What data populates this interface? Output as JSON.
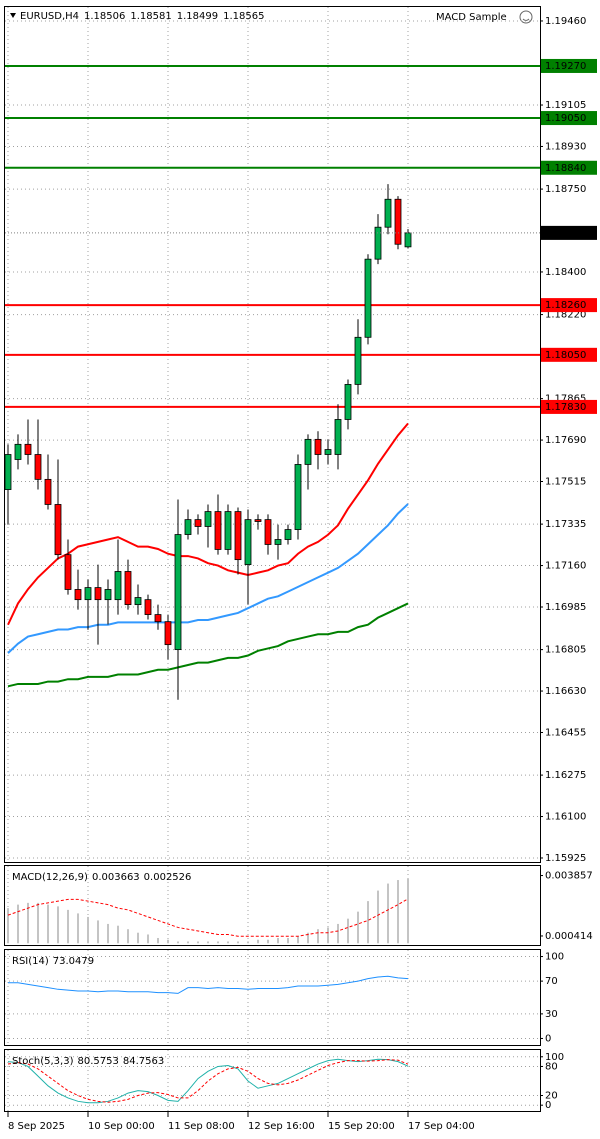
{
  "chart_data": [
    {
      "type": "candlestick",
      "title": "EURUSD,H4",
      "expert": "MACD Sample",
      "categories": [
        "8 Sep 2025",
        null,
        null,
        null,
        null,
        null,
        null,
        null,
        "10 Sep 00:00",
        null,
        null,
        null,
        null,
        null,
        null,
        null,
        "11 Sep 08:00",
        null,
        null,
        null,
        null,
        null,
        null,
        null,
        "12 Sep 16:00",
        null,
        null,
        null,
        null,
        null,
        null,
        null,
        "15 Sep 20:00",
        null,
        null,
        null,
        null,
        null,
        null,
        null,
        "17 Sep 04:00"
      ],
      "open": [
        1.17481,
        1.17608,
        1.17672,
        1.17629,
        1.17524,
        1.17418,
        1.17206,
        1.17059,
        1.17016,
        1.17067,
        1.17016,
        1.17016,
        1.17135,
        1.16995,
        1.17016,
        1.16953,
        1.16923,
        1.16805,
        1.17291,
        1.17354,
        1.17325,
        1.17388,
        1.17228,
        1.17388,
        1.17164,
        1.17354,
        1.17354,
        1.17249,
        1.1727,
        1.17312,
        1.17587,
        1.17693,
        1.17629,
        1.17629,
        1.17777,
        1.17925,
        1.18124,
        1.18454,
        1.18589,
        1.18707,
        1.18506
      ],
      "high": [
        1.17672,
        1.17714,
        1.17777,
        1.17777,
        1.17629,
        1.17608,
        1.1727,
        1.17143,
        1.17101,
        1.17164,
        1.17101,
        1.1727,
        1.17185,
        1.1708,
        1.17037,
        1.16995,
        1.16953,
        1.17439,
        1.17397,
        1.17376,
        1.17418,
        1.1746,
        1.17418,
        1.17405,
        1.17397,
        1.17376,
        1.17376,
        1.17333,
        1.17333,
        1.17629,
        1.17714,
        1.17727,
        1.17693,
        1.17841,
        1.17946,
        1.182,
        1.18475,
        1.18644,
        1.18771,
        1.1872,
        1.18581
      ],
      "low": [
        1.17333,
        1.17566,
        1.17587,
        1.17481,
        1.17397,
        1.17185,
        1.17037,
        1.16974,
        1.16889,
        1.16826,
        1.16911,
        1.16953,
        1.16974,
        1.16953,
        1.16932,
        1.16889,
        1.16763,
        1.16593,
        1.1727,
        1.17291,
        1.17236,
        1.17206,
        1.17206,
        1.17122,
        1.16995,
        1.17312,
        1.17206,
        1.17185,
        1.17249,
        1.1727,
        1.17481,
        1.17566,
        1.17587,
        1.17566,
        1.17735,
        1.17883,
        1.18094,
        1.18433,
        1.18559,
        1.18496,
        1.18499
      ],
      "close": [
        1.17629,
        1.17672,
        1.17629,
        1.17524,
        1.17418,
        1.17206,
        1.17059,
        1.17016,
        1.17067,
        1.17016,
        1.17059,
        1.17135,
        1.16995,
        1.17025,
        1.16953,
        1.16923,
        1.16826,
        1.17291,
        1.17354,
        1.17325,
        1.17388,
        1.17228,
        1.17388,
        1.17185,
        1.17354,
        1.17346,
        1.17249,
        1.1727,
        1.17312,
        1.17587,
        1.17693,
        1.17629,
        1.1765,
        1.17777,
        1.17925,
        1.18124,
        1.18454,
        1.18589,
        1.18707,
        1.18517,
        1.18565
      ],
      "bull_color": "#00b050",
      "bear_color": "#ff0000",
      "moving_averages": [
        {
          "color": "#ff0000",
          "values": [
            1.1691,
            1.17,
            1.1706,
            1.1711,
            1.1715,
            1.1719,
            1.1721,
            1.1724,
            1.1725,
            1.1726,
            1.1727,
            1.1728,
            1.1726,
            1.1724,
            1.1724,
            1.1723,
            1.1721,
            1.172,
            1.172,
            1.1719,
            1.1717,
            1.1716,
            1.1714,
            1.1713,
            1.1712,
            1.1713,
            1.1714,
            1.1716,
            1.1717,
            1.1721,
            1.1724,
            1.1726,
            1.1729,
            1.1733,
            1.174,
            1.1746,
            1.1752,
            1.1759,
            1.1765,
            1.1771,
            1.1776
          ]
        },
        {
          "color": "#3399ff",
          "values": [
            1.1679,
            1.1683,
            1.1686,
            1.1687,
            1.1688,
            1.1689,
            1.1689,
            1.169,
            1.169,
            1.1691,
            1.1691,
            1.1692,
            1.1692,
            1.1692,
            1.1692,
            1.1692,
            1.1692,
            1.1692,
            1.1692,
            1.1693,
            1.1693,
            1.1694,
            1.1695,
            1.1696,
            1.1698,
            1.17,
            1.1702,
            1.1703,
            1.1705,
            1.1707,
            1.1709,
            1.1711,
            1.1713,
            1.1715,
            1.1718,
            1.1721,
            1.1725,
            1.1729,
            1.1733,
            1.1738,
            1.1742
          ]
        },
        {
          "color": "#008000",
          "values": [
            1.1665,
            1.1666,
            1.1666,
            1.1666,
            1.1667,
            1.1667,
            1.1668,
            1.1668,
            1.1669,
            1.1669,
            1.1669,
            1.167,
            1.167,
            1.167,
            1.1671,
            1.1672,
            1.1672,
            1.1673,
            1.1674,
            1.1675,
            1.1675,
            1.1676,
            1.1677,
            1.1677,
            1.1678,
            1.168,
            1.1681,
            1.1682,
            1.1684,
            1.1685,
            1.1686,
            1.1687,
            1.1687,
            1.1688,
            1.1688,
            1.169,
            1.1691,
            1.1694,
            1.1696,
            1.1698,
            1.17
          ]
        }
      ],
      "levels": [
        {
          "value": 1.1927,
          "label": "1.19270",
          "color": "#008000"
        },
        {
          "value": 1.1905,
          "label": "1.19050",
          "color": "#008000"
        },
        {
          "value": 1.1884,
          "label": "1.18840",
          "color": "#008000"
        },
        {
          "value": 1.1826,
          "label": "1.18260",
          "color": "#ff0000"
        },
        {
          "value": 1.1805,
          "label": "1.18050",
          "color": "#ff0000"
        },
        {
          "value": 1.1783,
          "label": "1.17830",
          "color": "#ff0000"
        }
      ],
      "ylim": [
        1.15908,
        1.19519
      ],
      "yticks": [
        {
          "value": 1.1946,
          "label": "1.19460"
        },
        1.19105,
        {
          "value": 1.1893,
          "label": "1.18930"
        },
        {
          "value": 1.1875,
          "label": "1.18750"
        },
        {
          "value": 1.184,
          "label": "1.18400"
        },
        {
          "value": 1.1822,
          "label": "1.18220"
        },
        1.17865,
        {
          "value": 1.1769,
          "label": "1.17690"
        },
        1.17515,
        1.17335,
        {
          "value": 1.1716,
          "label": "1.17160"
        },
        1.16985,
        1.16805,
        {
          "value": 1.1663,
          "label": "1.16630"
        },
        1.16455,
        1.16275,
        {
          "value": 1.161,
          "label": "1.16100"
        },
        1.15925
      ],
      "grid": true
    },
    {
      "type": "indicator",
      "title": "MACD(12,26,9)",
      "series": [
        {
          "style": "bar",
          "color": "#b0b0b0",
          "values": [
            0.002,
            0.0022,
            0.0023,
            0.0023,
            0.0022,
            0.0021,
            0.0019,
            0.0017,
            0.0015,
            0.0013,
            0.0011,
            0.001,
            0.0008,
            0.0006,
            0.0005,
            0.0003,
            0.0002,
            0.0001,
            0.0001,
            0.0001,
            0.0001,
            0.0001,
            0.0001,
            0.0001,
            0.0001,
            0.0002,
            0.0002,
            0.0003,
            0.0003,
            0.0004,
            0.0006,
            0.0008,
            0.0009,
            0.0011,
            0.0014,
            0.0018,
            0.0024,
            0.003,
            0.0034,
            0.0036,
            0.003663
          ]
        },
        {
          "style": "dashed",
          "color": "#ff0000",
          "values": [
            0.0016,
            0.0018,
            0.002,
            0.0022,
            0.0023,
            0.0024,
            0.0025,
            0.0025,
            0.0024,
            0.0023,
            0.0022,
            0.002,
            0.0019,
            0.0017,
            0.0015,
            0.0013,
            0.0011,
            0.0009,
            0.0008,
            0.0007,
            0.0006,
            0.0005,
            0.0005,
            0.0004,
            0.0004,
            0.0004,
            0.0004,
            0.0004,
            0.0004,
            0.0004,
            0.0005,
            0.0006,
            0.0006,
            0.0007,
            0.0009,
            0.0011,
            0.0013,
            0.0016,
            0.0019,
            0.0022,
            0.002526
          ]
        }
      ],
      "ylim": [
        -0.0001,
        0.0044
      ],
      "yticks": [
        0.003857,
        0.000414
      ],
      "grid": false
    },
    {
      "type": "indicator",
      "title": "RSI(14)",
      "series": [
        {
          "style": "line",
          "color": "#1e90ff",
          "values": [
            68,
            68,
            66,
            64,
            62,
            60,
            59,
            58,
            58,
            57,
            58,
            58,
            57,
            57,
            57,
            56,
            56,
            55,
            62,
            62,
            61,
            62,
            61,
            61,
            60,
            61,
            61,
            61,
            62,
            64,
            64,
            64,
            65,
            66,
            68,
            70,
            73,
            75,
            76,
            74,
            73.0479
          ]
        }
      ],
      "ylim": [
        -8,
        108
      ],
      "yticks": [
        100,
        70,
        30,
        0
      ],
      "grid": true
    },
    {
      "type": "indicator",
      "title": "Stoch(5,3,3)",
      "series": [
        {
          "style": "line",
          "color": "#20b2aa",
          "values": [
            90,
            88,
            80,
            60,
            40,
            25,
            15,
            8,
            5,
            5,
            8,
            15,
            25,
            30,
            28,
            20,
            10,
            8,
            30,
            55,
            70,
            80,
            82,
            75,
            50,
            35,
            40,
            45,
            55,
            65,
            75,
            85,
            92,
            95,
            92,
            90,
            92,
            95,
            94,
            90,
            80.5753
          ]
        },
        {
          "style": "dashed",
          "color": "#ff0000",
          "values": [
            85,
            88,
            85,
            75,
            60,
            45,
            30,
            20,
            12,
            8,
            6,
            8,
            12,
            20,
            25,
            26,
            22,
            15,
            15,
            30,
            50,
            65,
            75,
            78,
            70,
            55,
            45,
            42,
            45,
            52,
            62,
            72,
            82,
            88,
            92,
            92,
            91,
            92,
            94,
            93,
            84.7563
          ]
        }
      ],
      "ylim": [
        -12,
        114
      ],
      "yticks": [
        100,
        80,
        20,
        0
      ],
      "grid": true
    }
  ]
}
